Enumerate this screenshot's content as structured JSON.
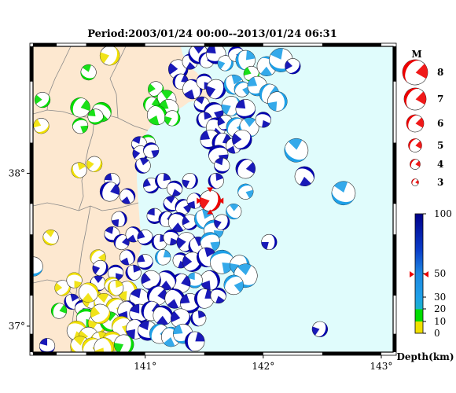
{
  "title": "Period:2003/01/24 00:00--2013/01/24 06:31",
  "map": {
    "lon_range": [
      140.05,
      143.1
    ],
    "lat_range": [
      36.83,
      38.83
    ],
    "x_ticks": [
      {
        "value": 141,
        "label": "141°"
      },
      {
        "value": 142,
        "label": "142°"
      },
      {
        "value": 143,
        "label": "143°"
      }
    ],
    "y_ticks": [
      {
        "value": 38,
        "label": "38°"
      },
      {
        "value": 37,
        "label": "37°"
      }
    ],
    "land_color": "#fde8d0",
    "sea_color": "#e0fcfc"
  },
  "magnitude_legend": {
    "title": "M",
    "items": [
      {
        "label": "8",
        "value": 8
      },
      {
        "label": "7",
        "value": 7
      },
      {
        "label": "6",
        "value": 6
      },
      {
        "label": "5",
        "value": 5
      },
      {
        "label": "4",
        "value": 4
      },
      {
        "label": "3",
        "value": 3
      }
    ],
    "color": "#ee0000"
  },
  "depth_legend": {
    "title": "Depth(km)",
    "ticks": [
      {
        "label": "100",
        "value": 100
      },
      {
        "label": "50",
        "value": 50
      },
      {
        "label": "30",
        "value": 30
      },
      {
        "label": "20",
        "value": 20
      },
      {
        "label": "10",
        "value": 10
      },
      {
        "label": "0",
        "value": 0
      }
    ],
    "marker_depth": 48,
    "colors": {
      "deep": "#0000b0",
      "mid": "#1ea0e8",
      "shallow": "#00dd00",
      "surface": "#f0e000"
    }
  },
  "highlight_event": {
    "lon": 141.55,
    "lat": 37.82,
    "magnitude": 4,
    "color": "#ee0000"
  },
  "events": [
    {
      "lon": 140.7,
      "lat": 38.77,
      "m": 4,
      "c": "s",
      "r": 20
    },
    {
      "lon": 140.52,
      "lat": 38.66,
      "m": 3,
      "c": "g",
      "r": 110
    },
    {
      "lon": 140.13,
      "lat": 38.48,
      "m": 3,
      "c": "g",
      "r": 40
    },
    {
      "lon": 140.45,
      "lat": 38.43,
      "m": 4,
      "c": "g",
      "r": 200
    },
    {
      "lon": 140.63,
      "lat": 38.4,
      "m": 4,
      "c": "g",
      "r": 300
    },
    {
      "lon": 140.12,
      "lat": 38.31,
      "m": 3,
      "c": "s",
      "r": 60
    },
    {
      "lon": 140.45,
      "lat": 38.31,
      "m": 3,
      "c": "g",
      "r": 250
    },
    {
      "lon": 140.58,
      "lat": 38.37,
      "m": 3,
      "c": "g",
      "r": 80
    },
    {
      "lon": 140.44,
      "lat": 38.02,
      "m": 3,
      "c": "s",
      "r": 150
    },
    {
      "lon": 140.57,
      "lat": 38.06,
      "m": 3,
      "c": "s",
      "r": 30
    },
    {
      "lon": 140.2,
      "lat": 37.58,
      "m": 3,
      "c": "s",
      "r": 120
    },
    {
      "lon": 140.05,
      "lat": 37.39,
      "m": 4,
      "c": "m",
      "r": 90
    },
    {
      "lon": 141.09,
      "lat": 38.55,
      "m": 3,
      "c": "g",
      "r": 45
    },
    {
      "lon": 141.18,
      "lat": 38.48,
      "m": 4,
      "c": "g",
      "r": 130
    },
    {
      "lon": 141.05,
      "lat": 38.45,
      "m": 3,
      "c": "g",
      "r": 200
    },
    {
      "lon": 141.2,
      "lat": 38.42,
      "m": 4,
      "c": "g",
      "r": 70
    },
    {
      "lon": 141.1,
      "lat": 38.38,
      "m": 4,
      "c": "g",
      "r": 330
    },
    {
      "lon": 141.23,
      "lat": 38.36,
      "m": 3,
      "c": "g",
      "r": 15
    },
    {
      "lon": 141.02,
      "lat": 38.2,
      "m": 3,
      "c": "g",
      "r": 260
    },
    {
      "lon": 140.95,
      "lat": 38.19,
      "m": 3,
      "c": "d",
      "r": 100
    },
    {
      "lon": 141.28,
      "lat": 38.68,
      "m": 4,
      "c": "d",
      "r": 40
    },
    {
      "lon": 141.38,
      "lat": 38.73,
      "m": 3,
      "c": "d",
      "r": 300
    },
    {
      "lon": 141.45,
      "lat": 38.78,
      "m": 4,
      "c": "d",
      "r": 130
    },
    {
      "lon": 141.52,
      "lat": 38.74,
      "m": 3,
      "c": "d",
      "r": 210
    },
    {
      "lon": 141.6,
      "lat": 38.78,
      "m": 4,
      "c": "d",
      "r": 80
    },
    {
      "lon": 141.68,
      "lat": 38.72,
      "m": 3,
      "c": "m",
      "r": 20
    },
    {
      "lon": 141.77,
      "lat": 38.78,
      "m": 3,
      "c": "d",
      "r": 250
    },
    {
      "lon": 141.85,
      "lat": 38.74,
      "m": 4,
      "c": "m",
      "r": 170
    },
    {
      "lon": 141.9,
      "lat": 38.65,
      "m": 3,
      "c": "g",
      "r": 60
    },
    {
      "lon": 142.03,
      "lat": 38.7,
      "m": 4,
      "c": "m",
      "r": 310
    },
    {
      "lon": 142.15,
      "lat": 38.74,
      "m": 5,
      "c": "m",
      "r": 100
    },
    {
      "lon": 142.25,
      "lat": 38.7,
      "m": 3,
      "c": "d",
      "r": 45
    },
    {
      "lon": 141.3,
      "lat": 38.6,
      "m": 3,
      "c": "d",
      "r": 190
    },
    {
      "lon": 141.4,
      "lat": 38.55,
      "m": 4,
      "c": "d",
      "r": 330
    },
    {
      "lon": 141.5,
      "lat": 38.6,
      "m": 3,
      "c": "d",
      "r": 270
    },
    {
      "lon": 141.6,
      "lat": 38.55,
      "m": 4,
      "c": "d",
      "r": 20
    },
    {
      "lon": 141.75,
      "lat": 38.58,
      "m": 4,
      "c": "m",
      "r": 150
    },
    {
      "lon": 141.82,
      "lat": 38.55,
      "m": 3,
      "c": "m",
      "r": 230
    },
    {
      "lon": 141.95,
      "lat": 38.57,
      "m": 4,
      "c": "m",
      "r": 70
    },
    {
      "lon": 142.05,
      "lat": 38.52,
      "m": 4,
      "c": "m",
      "r": 200
    },
    {
      "lon": 142.12,
      "lat": 38.47,
      "m": 4,
      "c": "m",
      "r": 350
    },
    {
      "lon": 141.48,
      "lat": 38.45,
      "m": 3,
      "c": "d",
      "r": 110
    },
    {
      "lon": 141.58,
      "lat": 38.4,
      "m": 4,
      "c": "d",
      "r": 240
    },
    {
      "lon": 141.73,
      "lat": 38.44,
      "m": 4,
      "c": "m",
      "r": 10
    },
    {
      "lon": 141.85,
      "lat": 38.42,
      "m": 4,
      "c": "d",
      "r": 80
    },
    {
      "lon": 141.5,
      "lat": 38.35,
      "m": 3,
      "c": "d",
      "r": 160
    },
    {
      "lon": 141.6,
      "lat": 38.3,
      "m": 4,
      "c": "d",
      "r": 300
    },
    {
      "lon": 141.68,
      "lat": 38.33,
      "m": 3,
      "c": "d",
      "r": 50
    },
    {
      "lon": 141.77,
      "lat": 38.3,
      "m": 4,
      "c": "m",
      "r": 220
    },
    {
      "lon": 141.88,
      "lat": 38.3,
      "m": 4,
      "c": "m",
      "r": 130
    },
    {
      "lon": 142.0,
      "lat": 38.35,
      "m": 3,
      "c": "d",
      "r": 280
    },
    {
      "lon": 141.55,
      "lat": 38.22,
      "m": 4,
      "c": "d",
      "r": 70
    },
    {
      "lon": 141.65,
      "lat": 38.2,
      "m": 4,
      "c": "d",
      "r": 190
    },
    {
      "lon": 141.75,
      "lat": 38.18,
      "m": 3,
      "c": "d",
      "r": 330
    },
    {
      "lon": 141.82,
      "lat": 38.22,
      "m": 4,
      "c": "d",
      "r": 40
    },
    {
      "lon": 141.62,
      "lat": 38.12,
      "m": 4,
      "c": "d",
      "r": 250
    },
    {
      "lon": 142.28,
      "lat": 38.15,
      "m": 5,
      "c": "m",
      "r": 120
    },
    {
      "lon": 141.65,
      "lat": 38.05,
      "m": 3,
      "c": "d",
      "r": 100
    },
    {
      "lon": 141.85,
      "lat": 38.03,
      "m": 4,
      "c": "d",
      "r": 210
    },
    {
      "lon": 141.6,
      "lat": 37.95,
      "m": 3,
      "c": "d",
      "r": 160
    },
    {
      "lon": 142.35,
      "lat": 37.98,
      "m": 4,
      "c": "d",
      "r": 300
    },
    {
      "lon": 140.96,
      "lat": 38.13,
      "m": 3,
      "c": "d",
      "r": 30
    },
    {
      "lon": 141.05,
      "lat": 38.15,
      "m": 3,
      "c": "d",
      "r": 250
    },
    {
      "lon": 140.98,
      "lat": 38.05,
      "m": 3,
      "c": "d",
      "r": 140
    },
    {
      "lon": 140.72,
      "lat": 37.95,
      "m": 3,
      "c": "d",
      "r": 80
    },
    {
      "lon": 140.7,
      "lat": 37.88,
      "m": 4,
      "c": "d",
      "r": 200
    },
    {
      "lon": 140.85,
      "lat": 37.85,
      "m": 3,
      "c": "d",
      "r": 320
    },
    {
      "lon": 141.05,
      "lat": 37.92,
      "m": 3,
      "c": "d",
      "r": 60
    },
    {
      "lon": 141.15,
      "lat": 37.95,
      "m": 3,
      "c": "d",
      "r": 170
    },
    {
      "lon": 141.25,
      "lat": 37.9,
      "m": 3,
      "c": "d",
      "r": 290
    },
    {
      "lon": 141.38,
      "lat": 37.95,
      "m": 3,
      "c": "d",
      "r": 10
    },
    {
      "lon": 141.22,
      "lat": 37.8,
      "m": 3,
      "c": "d",
      "r": 120
    },
    {
      "lon": 141.32,
      "lat": 37.78,
      "m": 3,
      "c": "d",
      "r": 230
    },
    {
      "lon": 141.42,
      "lat": 37.82,
      "m": 3,
      "c": "d",
      "r": 340
    },
    {
      "lon": 141.08,
      "lat": 37.72,
      "m": 3,
      "c": "d",
      "r": 90
    },
    {
      "lon": 141.18,
      "lat": 37.7,
      "m": 3,
      "c": "d",
      "r": 200
    },
    {
      "lon": 141.28,
      "lat": 37.68,
      "m": 4,
      "c": "d",
      "r": 310
    },
    {
      "lon": 141.38,
      "lat": 37.68,
      "m": 3,
      "c": "d",
      "r": 50
    },
    {
      "lon": 141.5,
      "lat": 37.7,
      "m": 4,
      "c": "m",
      "r": 150
    },
    {
      "lon": 141.58,
      "lat": 37.63,
      "m": 4,
      "c": "m",
      "r": 260
    },
    {
      "lon": 141.65,
      "lat": 37.68,
      "m": 3,
      "c": "d",
      "r": 20
    },
    {
      "lon": 141.75,
      "lat": 37.75,
      "m": 3,
      "c": "m",
      "r": 130
    },
    {
      "lon": 141.85,
      "lat": 37.88,
      "m": 3,
      "c": "m",
      "r": 240
    },
    {
      "lon": 140.78,
      "lat": 37.7,
      "m": 3,
      "c": "d",
      "r": 350
    },
    {
      "lon": 140.72,
      "lat": 37.6,
      "m": 3,
      "c": "d",
      "r": 100
    },
    {
      "lon": 140.8,
      "lat": 37.55,
      "m": 3,
      "c": "d",
      "r": 210
    },
    {
      "lon": 140.9,
      "lat": 37.6,
      "m": 3,
      "c": "d",
      "r": 320
    },
    {
      "lon": 141.0,
      "lat": 37.58,
      "m": 3,
      "c": "d",
      "r": 60
    },
    {
      "lon": 141.12,
      "lat": 37.55,
      "m": 3,
      "c": "d",
      "r": 170
    },
    {
      "lon": 141.22,
      "lat": 37.58,
      "m": 3,
      "c": "d",
      "r": 280
    },
    {
      "lon": 141.35,
      "lat": 37.55,
      "m": 4,
      "c": "d",
      "r": 30
    },
    {
      "lon": 141.45,
      "lat": 37.52,
      "m": 4,
      "c": "d",
      "r": 140
    },
    {
      "lon": 141.55,
      "lat": 37.55,
      "m": 4,
      "c": "m",
      "r": 250
    },
    {
      "lon": 142.05,
      "lat": 37.55,
      "m": 3,
      "c": "d",
      "r": 0
    },
    {
      "lon": 142.68,
      "lat": 37.87,
      "m": 5,
      "c": "m",
      "r": 110
    },
    {
      "lon": 140.6,
      "lat": 37.45,
      "m": 3,
      "c": "s",
      "r": 220
    },
    {
      "lon": 140.85,
      "lat": 37.45,
      "m": 3,
      "c": "d",
      "r": 330
    },
    {
      "lon": 141.0,
      "lat": 37.42,
      "m": 3,
      "c": "d",
      "r": 70
    },
    {
      "lon": 141.15,
      "lat": 37.45,
      "m": 3,
      "c": "m",
      "r": 180
    },
    {
      "lon": 141.3,
      "lat": 37.43,
      "m": 3,
      "c": "d",
      "r": 290
    },
    {
      "lon": 141.4,
      "lat": 37.42,
      "m": 4,
      "c": "d",
      "r": 40
    },
    {
      "lon": 141.52,
      "lat": 37.45,
      "m": 4,
      "c": "d",
      "r": 150
    },
    {
      "lon": 141.65,
      "lat": 37.42,
      "m": 5,
      "c": "m",
      "r": 260
    },
    {
      "lon": 141.8,
      "lat": 37.4,
      "m": 4,
      "c": "m",
      "r": 10
    },
    {
      "lon": 141.85,
      "lat": 37.33,
      "m": 5,
      "c": "m",
      "r": 120
    },
    {
      "lon": 141.75,
      "lat": 37.27,
      "m": 4,
      "c": "m",
      "r": 230
    },
    {
      "lon": 141.55,
      "lat": 37.3,
      "m": 4,
      "c": "d",
      "r": 340
    },
    {
      "lon": 141.42,
      "lat": 37.3,
      "m": 3,
      "c": "m",
      "r": 90
    },
    {
      "lon": 141.3,
      "lat": 37.28,
      "m": 4,
      "c": "d",
      "r": 200
    },
    {
      "lon": 141.18,
      "lat": 37.3,
      "m": 4,
      "c": "d",
      "r": 310
    },
    {
      "lon": 141.05,
      "lat": 37.3,
      "m": 4,
      "c": "d",
      "r": 50
    },
    {
      "lon": 140.9,
      "lat": 37.35,
      "m": 3,
      "c": "d",
      "r": 160
    },
    {
      "lon": 140.75,
      "lat": 37.35,
      "m": 3,
      "c": "d",
      "r": 270
    },
    {
      "lon": 140.62,
      "lat": 37.38,
      "m": 3,
      "c": "d",
      "r": 20
    },
    {
      "lon": 140.6,
      "lat": 37.28,
      "m": 3,
      "c": "d",
      "r": 130
    },
    {
      "lon": 140.72,
      "lat": 37.27,
      "m": 3,
      "c": "s",
      "r": 240
    },
    {
      "lon": 140.85,
      "lat": 37.23,
      "m": 4,
      "c": "s",
      "r": 350
    },
    {
      "lon": 140.95,
      "lat": 37.18,
      "m": 4,
      "c": "d",
      "r": 100
    },
    {
      "lon": 141.1,
      "lat": 37.2,
      "m": 4,
      "c": "d",
      "r": 210
    },
    {
      "lon": 141.25,
      "lat": 37.18,
      "m": 4,
      "c": "d",
      "r": 320
    },
    {
      "lon": 141.38,
      "lat": 37.15,
      "m": 4,
      "c": "d",
      "r": 70
    },
    {
      "lon": 141.5,
      "lat": 37.18,
      "m": 4,
      "c": "d",
      "r": 180
    },
    {
      "lon": 141.62,
      "lat": 37.2,
      "m": 3,
      "c": "d",
      "r": 290
    },
    {
      "lon": 140.3,
      "lat": 37.25,
      "m": 3,
      "c": "s",
      "r": 40
    },
    {
      "lon": 140.38,
      "lat": 37.16,
      "m": 3,
      "c": "d",
      "r": 150
    },
    {
      "lon": 140.47,
      "lat": 37.12,
      "m": 3,
      "c": "d",
      "r": 260
    },
    {
      "lon": 140.55,
      "lat": 37.18,
      "m": 4,
      "c": "s",
      "r": 10
    },
    {
      "lon": 140.65,
      "lat": 37.15,
      "m": 4,
      "c": "s",
      "r": 120
    },
    {
      "lon": 140.75,
      "lat": 37.12,
      "m": 4,
      "c": "s",
      "r": 230
    },
    {
      "lon": 140.85,
      "lat": 37.1,
      "m": 4,
      "c": "d",
      "r": 340
    },
    {
      "lon": 140.95,
      "lat": 37.08,
      "m": 4,
      "c": "d",
      "r": 90
    },
    {
      "lon": 141.05,
      "lat": 37.1,
      "m": 4,
      "c": "d",
      "r": 200
    },
    {
      "lon": 141.15,
      "lat": 37.07,
      "m": 4,
      "c": "d",
      "r": 310
    },
    {
      "lon": 141.3,
      "lat": 37.05,
      "m": 4,
      "c": "d",
      "r": 50
    },
    {
      "lon": 141.45,
      "lat": 37.05,
      "m": 3,
      "c": "d",
      "r": 160
    },
    {
      "lon": 140.5,
      "lat": 37.05,
      "m": 4,
      "c": "g",
      "r": 270
    },
    {
      "lon": 140.6,
      "lat": 37.02,
      "m": 4,
      "c": "s",
      "r": 20
    },
    {
      "lon": 140.7,
      "lat": 37.03,
      "m": 4,
      "c": "g",
      "r": 130
    },
    {
      "lon": 140.8,
      "lat": 37.0,
      "m": 4,
      "c": "s",
      "r": 240
    },
    {
      "lon": 140.92,
      "lat": 36.98,
      "m": 4,
      "c": "d",
      "r": 350
    },
    {
      "lon": 141.02,
      "lat": 36.97,
      "m": 4,
      "c": "d",
      "r": 100
    },
    {
      "lon": 141.12,
      "lat": 36.95,
      "m": 4,
      "c": "m",
      "r": 210
    },
    {
      "lon": 141.22,
      "lat": 36.93,
      "m": 4,
      "c": "m",
      "r": 320
    },
    {
      "lon": 141.32,
      "lat": 36.95,
      "m": 4,
      "c": "m",
      "r": 70
    },
    {
      "lon": 141.42,
      "lat": 36.9,
      "m": 4,
      "c": "d",
      "r": 180
    },
    {
      "lon": 140.42,
      "lat": 36.97,
      "m": 4,
      "c": "s",
      "r": 290
    },
    {
      "lon": 140.52,
      "lat": 36.93,
      "m": 4,
      "c": "s",
      "r": 40
    },
    {
      "lon": 140.62,
      "lat": 36.9,
      "m": 4,
      "c": "s",
      "r": 150
    },
    {
      "lon": 140.72,
      "lat": 36.9,
      "m": 4,
      "c": "s",
      "r": 260
    },
    {
      "lon": 140.82,
      "lat": 36.88,
      "m": 4,
      "c": "g",
      "r": 10
    },
    {
      "lon": 140.45,
      "lat": 36.87,
      "m": 4,
      "c": "s",
      "r": 120
    },
    {
      "lon": 140.55,
      "lat": 36.86,
      "m": 4,
      "c": "s",
      "r": 230
    },
    {
      "lon": 140.65,
      "lat": 36.86,
      "m": 4,
      "c": "s",
      "r": 340
    },
    {
      "lon": 140.17,
      "lat": 36.87,
      "m": 3,
      "c": "d",
      "r": 90
    },
    {
      "lon": 140.27,
      "lat": 37.1,
      "m": 3,
      "c": "g",
      "r": 200
    },
    {
      "lon": 140.52,
      "lat": 37.22,
      "m": 4,
      "c": "s",
      "r": 310
    },
    {
      "lon": 140.62,
      "lat": 37.08,
      "m": 4,
      "c": "s",
      "r": 50
    },
    {
      "lon": 140.75,
      "lat": 37.25,
      "m": 3,
      "c": "s",
      "r": 160
    },
    {
      "lon": 140.4,
      "lat": 37.3,
      "m": 3,
      "c": "s",
      "r": 270
    },
    {
      "lon": 142.48,
      "lat": 36.98,
      "m": 3,
      "c": "d",
      "r": 20
    }
  ]
}
